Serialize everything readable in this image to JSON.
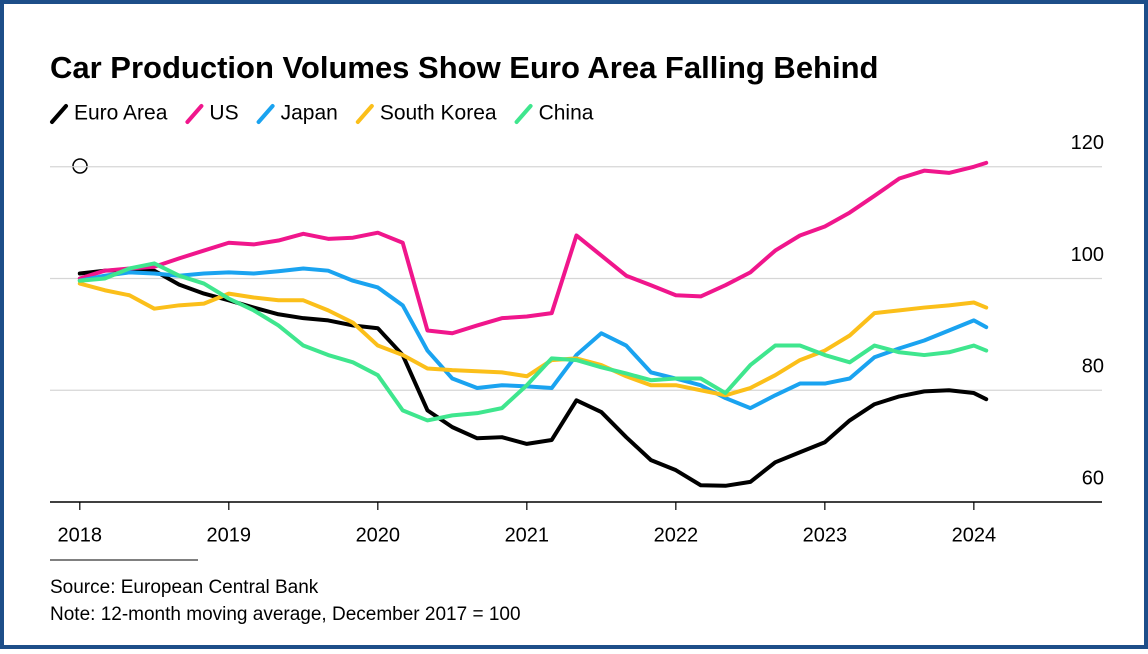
{
  "chart_data": {
    "type": "line",
    "title": "Car Production Volumes Show Euro Area Falling Behind",
    "source": "Source: European Central Bank",
    "note": "Note: 12-month moving average, December 2017 = 100",
    "x": [
      2018,
      2018.167,
      2018.333,
      2018.5,
      2018.667,
      2018.833,
      2019,
      2019.167,
      2019.333,
      2019.5,
      2019.667,
      2019.833,
      2020,
      2020.167,
      2020.333,
      2020.5,
      2020.667,
      2020.833,
      2021,
      2021.167,
      2021.333,
      2021.5,
      2021.667,
      2021.833,
      2022,
      2022.167,
      2022.333,
      2022.5,
      2022.667,
      2022.833,
      2023,
      2023.167,
      2023.333,
      2023.5,
      2023.667,
      2023.833,
      2024,
      2024.083
    ],
    "series": [
      {
        "name": "Euro Area",
        "color": "#000000",
        "values": [
          100.9,
          101.4,
          101.6,
          101.4,
          98.9,
          97.3,
          96.1,
          94.8,
          93.6,
          92.9,
          92.5,
          91.6,
          91.1,
          86.3,
          76.4,
          73.4,
          71.4,
          71.6,
          70.4,
          71.1,
          78.2,
          76.1,
          71.6,
          67.5,
          65.7,
          63.0,
          62.9,
          63.6,
          67.1,
          68.9,
          70.7,
          74.6,
          77.5,
          78.9,
          79.8,
          80.0,
          79.5,
          78.4
        ]
      },
      {
        "name": "US",
        "color": "#f0168c",
        "values": [
          100,
          101.4,
          101.8,
          102.1,
          103.6,
          105,
          106.4,
          106.1,
          106.8,
          108,
          107.1,
          107.3,
          108.2,
          106.4,
          90.7,
          90.2,
          91.6,
          92.9,
          93.2,
          93.8,
          107.7,
          104.1,
          100.5,
          98.8,
          97,
          96.8,
          98.8,
          101.1,
          105,
          107.7,
          109.3,
          111.8,
          114.8,
          117.9,
          119.3,
          118.9,
          120,
          120.7
        ]
      },
      {
        "name": "Japan",
        "color": "#1aa3f0",
        "values": [
          99.6,
          100.5,
          101.1,
          100.9,
          100.5,
          100.9,
          101.1,
          100.9,
          101.3,
          101.8,
          101.4,
          99.6,
          98.4,
          95.2,
          87.1,
          82.1,
          80.4,
          80.9,
          80.7,
          80.4,
          86.3,
          90.2,
          88.0,
          83.2,
          82.1,
          80.9,
          78.6,
          76.8,
          79.1,
          81.2,
          81.2,
          82.1,
          85.9,
          87.5,
          88.9,
          90.7,
          92.5,
          91.3
        ]
      },
      {
        "name": "South Korea",
        "color": "#fbbf1a",
        "values": [
          99.1,
          97.9,
          97,
          94.6,
          95.2,
          95.5,
          97.3,
          96.6,
          96.1,
          96.1,
          94.3,
          92.1,
          88.0,
          86.3,
          83.9,
          83.6,
          83.4,
          83.2,
          82.5,
          85.4,
          85.7,
          84.5,
          82.5,
          80.9,
          80.9,
          80,
          79.1,
          80.4,
          82.7,
          85.4,
          87.1,
          89.8,
          93.8,
          94.3,
          94.8,
          95.2,
          95.7,
          94.8
        ]
      },
      {
        "name": "China",
        "color": "#3fe68e",
        "values": [
          99.6,
          100,
          101.8,
          102.7,
          100.5,
          99.1,
          96.4,
          94.3,
          91.6,
          88.0,
          86.3,
          85.0,
          82.7,
          76.4,
          74.6,
          75.5,
          75.9,
          76.8,
          80.9,
          85.7,
          85.4,
          84.1,
          83.0,
          81.8,
          82.1,
          82.1,
          79.5,
          84.5,
          88.0,
          88.0,
          86.3,
          85.0,
          88.0,
          86.8,
          86.3,
          86.8,
          88.0,
          87.1
        ]
      }
    ],
    "xlim": [
      2017.8,
      2024.86
    ],
    "xticks": [
      2018,
      2019,
      2020,
      2021,
      2022,
      2023,
      2024
    ],
    "ylim": [
      60,
      123
    ],
    "yticks": [
      60,
      80,
      100,
      120
    ],
    "grid": true
  }
}
